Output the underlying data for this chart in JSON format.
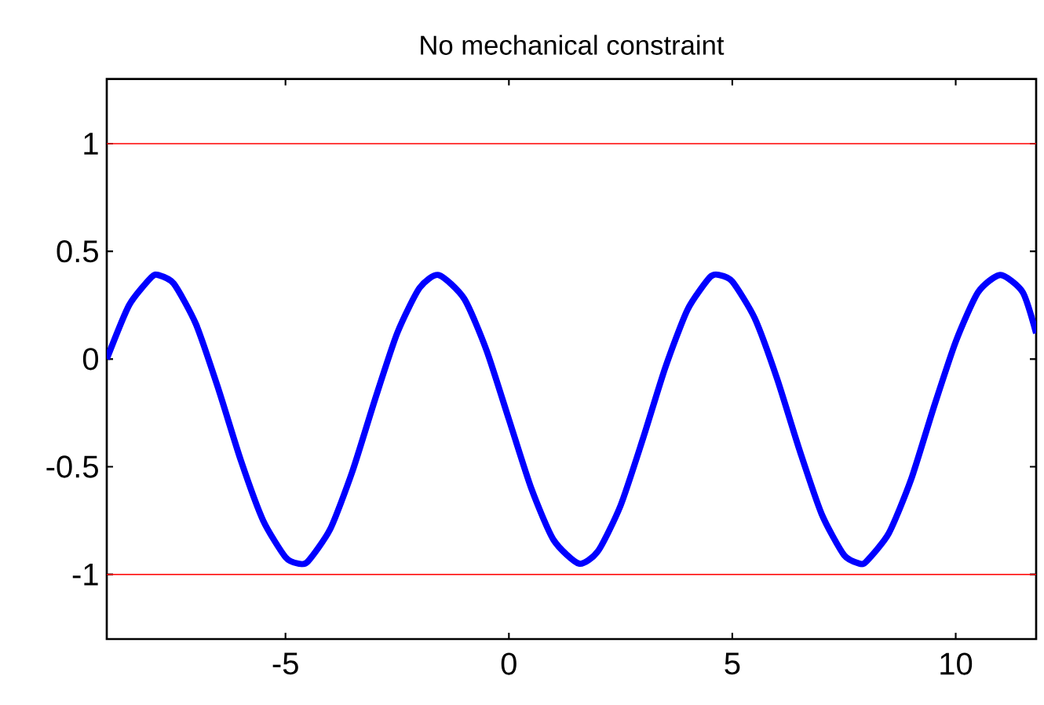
{
  "chart_data": {
    "type": "line",
    "title": "No mechanical constraint",
    "series": [
      {
        "color": "#0000ff",
        "x": [
          -9,
          -8.5,
          -8,
          -7.85,
          -7.5,
          -7,
          -6.5,
          -6,
          -5.5,
          -5,
          -4.71,
          -4.5,
          -4,
          -3.5,
          -3,
          -2.5,
          -2,
          -1.57,
          -1,
          -0.5,
          0,
          0.5,
          1,
          1.57,
          2,
          2.5,
          3,
          3.5,
          4,
          4.5,
          4.71,
          5,
          5.5,
          6,
          6.5,
          7,
          7.5,
          7.85,
          8,
          8.5,
          9,
          9.5,
          10,
          10.5,
          11,
          11.5,
          11.8
        ],
        "values": [
          0.0,
          0.25,
          0.38,
          0.39,
          0.35,
          0.16,
          -0.14,
          -0.47,
          -0.75,
          -0.92,
          -0.95,
          -0.94,
          -0.79,
          -0.52,
          -0.19,
          0.12,
          0.33,
          0.39,
          0.28,
          0.04,
          -0.28,
          -0.6,
          -0.84,
          -0.95,
          -0.89,
          -0.68,
          -0.37,
          -0.04,
          0.23,
          0.38,
          0.39,
          0.36,
          0.19,
          -0.09,
          -0.42,
          -0.72,
          -0.91,
          -0.95,
          -0.94,
          -0.81,
          -0.56,
          -0.23,
          0.08,
          0.31,
          0.39,
          0.31,
          0.12
        ]
      }
    ],
    "xlim": [
      -9,
      11.8
    ],
    "ylim": [
      -1.3,
      1.3
    ],
    "xticks": [
      -5,
      0,
      5,
      10
    ],
    "yticks": [
      -1,
      -0.5,
      0,
      0.5,
      1
    ],
    "ref_lines": [
      {
        "axis": "y",
        "value": 1,
        "color": "#ff0000"
      },
      {
        "axis": "y",
        "value": -1,
        "color": "#ff0000"
      }
    ],
    "marker": "none",
    "line_style": "solid"
  }
}
